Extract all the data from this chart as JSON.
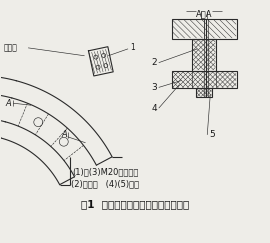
{
  "title": "图1  大齿圈断裂位置及加固装配示意",
  "caption_line1": "(1)、(3)M20联接螺栓",
  "caption_line2": "(2)大齿圈   (4)(5)夹板",
  "section_label": "A－A",
  "bg_color": "#eeede8",
  "line_color": "#2a2a2a",
  "text_color": "#1a1a1a",
  "title_color": "#111111",
  "lw_main": 0.8,
  "lw_thin": 0.45,
  "lw_hatch": 0.35
}
